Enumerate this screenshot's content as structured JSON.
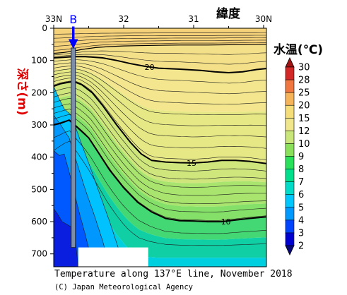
{
  "chart_data": {
    "type": "contour",
    "title": "Temperature along 137°E line, November 2018",
    "credit": "(C) Japan Meteorological Agency",
    "xlabel": "緯度",
    "ylabel": "深さ(m)",
    "x_ticks": [
      "33N",
      "32",
      "31",
      "30N"
    ],
    "y_ticks": [
      "0",
      "100",
      "200",
      "300",
      "400",
      "500",
      "600",
      "700"
    ],
    "xlim": [
      33.0,
      29.96
    ],
    "ylim": [
      0,
      740
    ],
    "station_marker": {
      "label": "B",
      "latitude": 32.72,
      "color": "#0000ff"
    },
    "colorbar": {
      "title": "水温(℃)",
      "levels": [
        2,
        3,
        4,
        5,
        6,
        7,
        8,
        9,
        10,
        12,
        15,
        20,
        25,
        28,
        30
      ],
      "colors": [
        "#08087a",
        "#0000d0",
        "#0044ff",
        "#0099ff",
        "#00c8ff",
        "#00dcc8",
        "#00e08c",
        "#28e05a",
        "#8ae05a",
        "#c8e67a",
        "#f0e68c",
        "#f5de7a",
        "#f5b45a",
        "#f07840",
        "#d22828",
        "#a01414"
      ]
    },
    "contour_labels": [
      {
        "text": "20",
        "latitude": 31.63,
        "depth": 120
      },
      {
        "text": "15",
        "latitude": 31.03,
        "depth": 418
      },
      {
        "text": "10",
        "latitude": 30.54,
        "depth": 600
      }
    ],
    "contours": [
      {
        "value": 25,
        "points": [
          [
            33.0,
            78
          ],
          [
            32.85,
            75
          ],
          [
            32.7,
            70
          ],
          [
            32.6,
            66
          ],
          [
            32.4,
            60
          ],
          [
            32.2,
            57
          ],
          [
            32.0,
            55
          ],
          [
            31.8,
            54
          ],
          [
            31.5,
            53
          ],
          [
            31.2,
            52
          ],
          [
            30.8,
            52
          ],
          [
            30.4,
            51
          ],
          [
            29.96,
            50
          ]
        ]
      },
      {
        "value": 20,
        "points": [
          [
            33.0,
            92
          ],
          [
            32.85,
            90
          ],
          [
            32.72,
            88
          ],
          [
            32.55,
            88
          ],
          [
            32.3,
            92
          ],
          [
            32.1,
            100
          ],
          [
            31.9,
            110
          ],
          [
            31.7,
            118
          ],
          [
            31.5,
            124
          ],
          [
            31.2,
            127
          ],
          [
            30.9,
            131
          ],
          [
            30.7,
            135
          ],
          [
            30.5,
            138
          ],
          [
            30.3,
            135
          ],
          [
            30.1,
            128
          ],
          [
            29.96,
            125
          ]
        ]
      },
      {
        "value": 15,
        "points": [
          [
            33.0,
            180
          ],
          [
            32.9,
            172
          ],
          [
            32.72,
            165
          ],
          [
            32.6,
            175
          ],
          [
            32.45,
            200
          ],
          [
            32.3,
            240
          ],
          [
            32.1,
            300
          ],
          [
            31.9,
            355
          ],
          [
            31.75,
            390
          ],
          [
            31.6,
            410
          ],
          [
            31.4,
            415
          ],
          [
            31.2,
            417
          ],
          [
            31.0,
            418
          ],
          [
            30.8,
            415
          ],
          [
            30.6,
            410
          ],
          [
            30.4,
            410
          ],
          [
            30.2,
            413
          ],
          [
            29.96,
            420
          ]
        ]
      },
      {
        "value": 10,
        "points": [
          [
            33.0,
            300
          ],
          [
            32.9,
            295
          ],
          [
            32.78,
            285
          ],
          [
            32.65,
            310
          ],
          [
            32.5,
            340
          ],
          [
            32.35,
            390
          ],
          [
            32.2,
            440
          ],
          [
            32.0,
            495
          ],
          [
            31.8,
            540
          ],
          [
            31.6,
            570
          ],
          [
            31.4,
            590
          ],
          [
            31.2,
            597
          ],
          [
            31.0,
            598
          ],
          [
            30.8,
            600
          ],
          [
            30.6,
            600
          ],
          [
            30.4,
            595
          ],
          [
            30.2,
            590
          ],
          [
            29.96,
            585
          ]
        ]
      },
      {
        "value": 8,
        "points": [
          [
            33.0,
            420
          ],
          [
            32.9,
            400
          ],
          [
            32.78,
            380
          ],
          [
            32.68,
            420
          ],
          [
            32.55,
            470
          ],
          [
            32.4,
            530
          ],
          [
            32.25,
            590
          ],
          [
            32.1,
            640
          ],
          [
            31.95,
            680
          ],
          [
            31.8,
            705
          ],
          [
            31.65,
            710
          ],
          [
            31.5,
            712
          ],
          [
            31.2,
            712
          ],
          [
            30.9,
            712
          ],
          [
            30.6,
            712
          ],
          [
            30.3,
            712
          ],
          [
            29.96,
            712
          ]
        ]
      }
    ],
    "bottom_box": {
      "from_latitude": 32.65,
      "to_latitude": 31.65,
      "from_depth": 680,
      "to_depth": 740
    }
  }
}
